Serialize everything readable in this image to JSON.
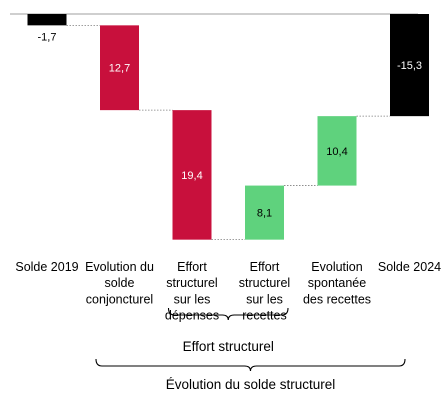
{
  "chart_data": {
    "type": "bar",
    "subtype": "waterfall",
    "categories": [
      [
        "Solde 2019"
      ],
      [
        "Evolution du",
        "solde",
        "conjoncturel"
      ],
      [
        "Effort",
        "structurel",
        "sur les",
        "dépenses"
      ],
      [
        "Effort",
        "structurel",
        "sur les",
        "recettes"
      ],
      [
        "Evolution",
        "spontanée",
        "des recettes"
      ],
      [
        "Solde 2024"
      ]
    ],
    "values": [
      -1.7,
      -12.7,
      -19.4,
      8.1,
      10.4,
      -15.3
    ],
    "value_labels": [
      "-1,7",
      "12,7",
      "19,4",
      "8,1",
      "10,4",
      "-15,3"
    ],
    "bar_kinds": [
      "total",
      "negative",
      "negative",
      "positive",
      "positive",
      "total"
    ],
    "colors": {
      "total": "#000000",
      "negative": "#c8103c",
      "positive": "#5fd27d",
      "label_on_dark": "#ffffff",
      "label_on_light": "#000000"
    },
    "ylim": [
      -35.2,
      0
    ],
    "grid": false,
    "legend": "none",
    "brackets": [
      {
        "label": "Effort structurel",
        "from": 2,
        "to": 3
      },
      {
        "label": "Évolution du solde structurel",
        "from": 1,
        "to": 5
      }
    ]
  }
}
